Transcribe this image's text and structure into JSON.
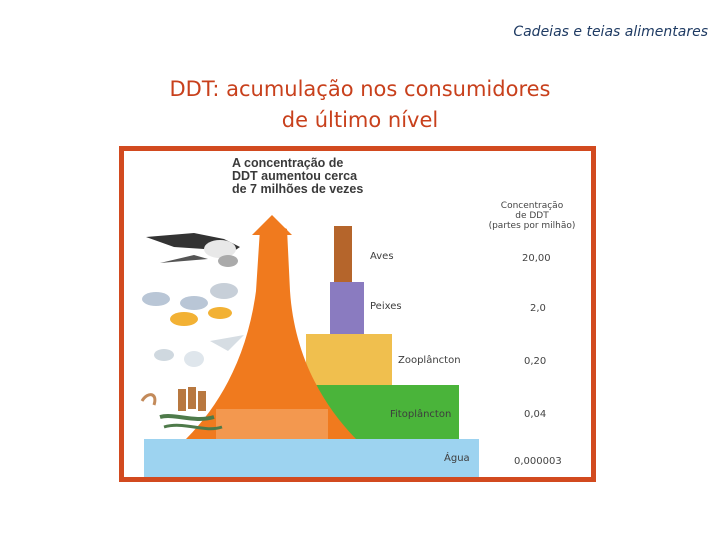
{
  "header": {
    "subtitle": "Cadeias e teias alimentares"
  },
  "slide": {
    "title_line1": "DDT: acumulação nos consumidores",
    "title_line2": "de último nível"
  },
  "figure": {
    "headline": [
      "A concentração de",
      "DDT aumentou cerca",
      "de 7 milhões de vezes"
    ],
    "column_header": [
      "Concentração",
      "de DDT",
      "(partes por milhão)"
    ],
    "levels": [
      {
        "name": "Aves",
        "value": "20,00",
        "color": "#b5652b"
      },
      {
        "name": "Peixes",
        "value": "2,0",
        "color": "#8a7bc0"
      },
      {
        "name": "Zooplâncton",
        "value": "0,20",
        "color": "#f0bf4e"
      },
      {
        "name": "Fitoplâncton",
        "value": "0,04",
        "color": "#4ab43a"
      },
      {
        "name": "Água",
        "value": "0,000003",
        "color": "#9dd3f0"
      }
    ],
    "arrow_color": "#f07a1e",
    "frame_color": "#d24a1f"
  }
}
